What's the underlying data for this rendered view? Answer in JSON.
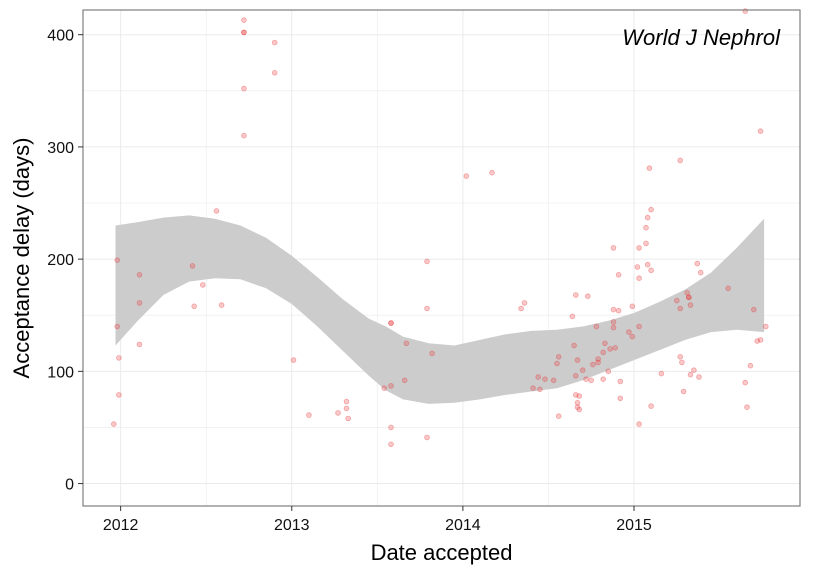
{
  "chart_data": {
    "type": "scatter",
    "title": "",
    "annotation": "World J Nephrol",
    "xlabel": "Date accepted",
    "ylabel": "Acceptance delay (days)",
    "x_unit": "year (decimal)",
    "xlim": [
      2011.78,
      2015.97
    ],
    "ylim": [
      -20,
      422
    ],
    "x_ticks": [
      2012,
      2013,
      2014,
      2015
    ],
    "x_tick_labels": [
      "2012",
      "2013",
      "2014",
      "2015"
    ],
    "y_ticks": [
      0,
      100,
      200,
      300,
      400
    ],
    "y_tick_labels": [
      "0",
      "100",
      "200",
      "300",
      "400"
    ],
    "grid": true,
    "legend": "none",
    "colors": {
      "points": "#e8383b",
      "band": "#cccccc",
      "panel_border": "#7f7f7f",
      "grid": "#ebebeb"
    },
    "points": [
      [
        2011.96,
        53
      ],
      [
        2011.98,
        199
      ],
      [
        2011.98,
        140
      ],
      [
        2011.99,
        112
      ],
      [
        2011.99,
        79
      ],
      [
        2012.11,
        186
      ],
      [
        2012.11,
        161
      ],
      [
        2012.11,
        124
      ],
      [
        2012.42,
        194
      ],
      [
        2012.43,
        158
      ],
      [
        2012.48,
        177
      ],
      [
        2012.56,
        243
      ],
      [
        2012.59,
        159
      ],
      [
        2012.72,
        413
      ],
      [
        2012.72,
        402
      ],
      [
        2012.72,
        402
      ],
      [
        2012.72,
        352
      ],
      [
        2012.72,
        310
      ],
      [
        2012.9,
        393
      ],
      [
        2012.9,
        366
      ],
      [
        2013.01,
        110
      ],
      [
        2013.1,
        61
      ],
      [
        2013.27,
        63
      ],
      [
        2013.32,
        73
      ],
      [
        2013.32,
        67
      ],
      [
        2013.33,
        58
      ],
      [
        2013.54,
        85
      ],
      [
        2013.58,
        143
      ],
      [
        2013.58,
        143
      ],
      [
        2013.58,
        87
      ],
      [
        2013.58,
        50
      ],
      [
        2013.58,
        35
      ],
      [
        2013.66,
        92
      ],
      [
        2013.67,
        125
      ],
      [
        2013.79,
        198
      ],
      [
        2013.79,
        156
      ],
      [
        2013.79,
        41
      ],
      [
        2013.82,
        116
      ],
      [
        2014.02,
        274
      ],
      [
        2014.17,
        277
      ],
      [
        2014.34,
        156
      ],
      [
        2014.36,
        161
      ],
      [
        2014.41,
        85
      ],
      [
        2014.44,
        95
      ],
      [
        2014.45,
        84
      ],
      [
        2014.48,
        93
      ],
      [
        2014.53,
        92
      ],
      [
        2014.55,
        107
      ],
      [
        2014.56,
        113
      ],
      [
        2014.56,
        60
      ],
      [
        2014.64,
        149
      ],
      [
        2014.65,
        123
      ],
      [
        2014.66,
        168
      ],
      [
        2014.67,
        110
      ],
      [
        2014.66,
        96
      ],
      [
        2014.66,
        79
      ],
      [
        2014.67,
        72
      ],
      [
        2014.67,
        68
      ],
      [
        2014.68,
        78
      ],
      [
        2014.68,
        66
      ],
      [
        2014.7,
        101
      ],
      [
        2014.72,
        93
      ],
      [
        2014.73,
        167
      ],
      [
        2014.75,
        92
      ],
      [
        2014.76,
        106
      ],
      [
        2014.78,
        140
      ],
      [
        2014.79,
        111
      ],
      [
        2014.79,
        108
      ],
      [
        2014.82,
        117
      ],
      [
        2014.82,
        93
      ],
      [
        2014.83,
        125
      ],
      [
        2014.85,
        100
      ],
      [
        2014.86,
        120
      ],
      [
        2014.88,
        210
      ],
      [
        2014.88,
        155
      ],
      [
        2014.88,
        144
      ],
      [
        2014.88,
        139
      ],
      [
        2014.89,
        121
      ],
      [
        2014.91,
        186
      ],
      [
        2014.91,
        154
      ],
      [
        2014.92,
        91
      ],
      [
        2014.92,
        76
      ],
      [
        2014.97,
        135
      ],
      [
        2014.99,
        158
      ],
      [
        2014.99,
        131
      ],
      [
        2015.02,
        193
      ],
      [
        2015.03,
        210
      ],
      [
        2015.03,
        183
      ],
      [
        2015.03,
        140
      ],
      [
        2015.03,
        53
      ],
      [
        2015.07,
        228
      ],
      [
        2015.07,
        214
      ],
      [
        2015.08,
        237
      ],
      [
        2015.08,
        195
      ],
      [
        2015.09,
        281
      ],
      [
        2015.1,
        244
      ],
      [
        2015.1,
        190
      ],
      [
        2015.1,
        69
      ],
      [
        2015.16,
        98
      ],
      [
        2015.25,
        163
      ],
      [
        2015.27,
        288
      ],
      [
        2015.27,
        156
      ],
      [
        2015.27,
        113
      ],
      [
        2015.28,
        108
      ],
      [
        2015.29,
        82
      ],
      [
        2015.31,
        170
      ],
      [
        2015.32,
        166
      ],
      [
        2015.32,
        166
      ],
      [
        2015.33,
        159
      ],
      [
        2015.33,
        97
      ],
      [
        2015.35,
        101
      ],
      [
        2015.37,
        196
      ],
      [
        2015.38,
        95
      ],
      [
        2015.39,
        188
      ],
      [
        2015.55,
        174
      ],
      [
        2015.65,
        421
      ],
      [
        2015.65,
        90
      ],
      [
        2015.66,
        68
      ],
      [
        2015.68,
        105
      ],
      [
        2015.7,
        155
      ],
      [
        2015.72,
        127
      ],
      [
        2015.74,
        128
      ],
      [
        2015.74,
        314
      ],
      [
        2015.77,
        140
      ]
    ],
    "smooth_band": {
      "x": [
        2011.97,
        2012.1,
        2012.25,
        2012.4,
        2012.55,
        2012.7,
        2012.85,
        2013.0,
        2013.15,
        2013.3,
        2013.45,
        2013.55,
        2013.65,
        2013.8,
        2013.95,
        2014.1,
        2014.25,
        2014.4,
        2014.55,
        2014.7,
        2014.85,
        2015.0,
        2015.15,
        2015.3,
        2015.45,
        2015.6,
        2015.76
      ],
      "lower": [
        123,
        145,
        168,
        180,
        183,
        182,
        174,
        160,
        140,
        118,
        96,
        83,
        75,
        71,
        72,
        75,
        79,
        82,
        85,
        92,
        101,
        110,
        119,
        128,
        135,
        137,
        135
      ],
      "upper": [
        230,
        233,
        237,
        239,
        236,
        230,
        219,
        203,
        184,
        164,
        147,
        140,
        131,
        125,
        123,
        128,
        133,
        136,
        137,
        140,
        145,
        152,
        162,
        173,
        188,
        210,
        236
      ]
    }
  }
}
